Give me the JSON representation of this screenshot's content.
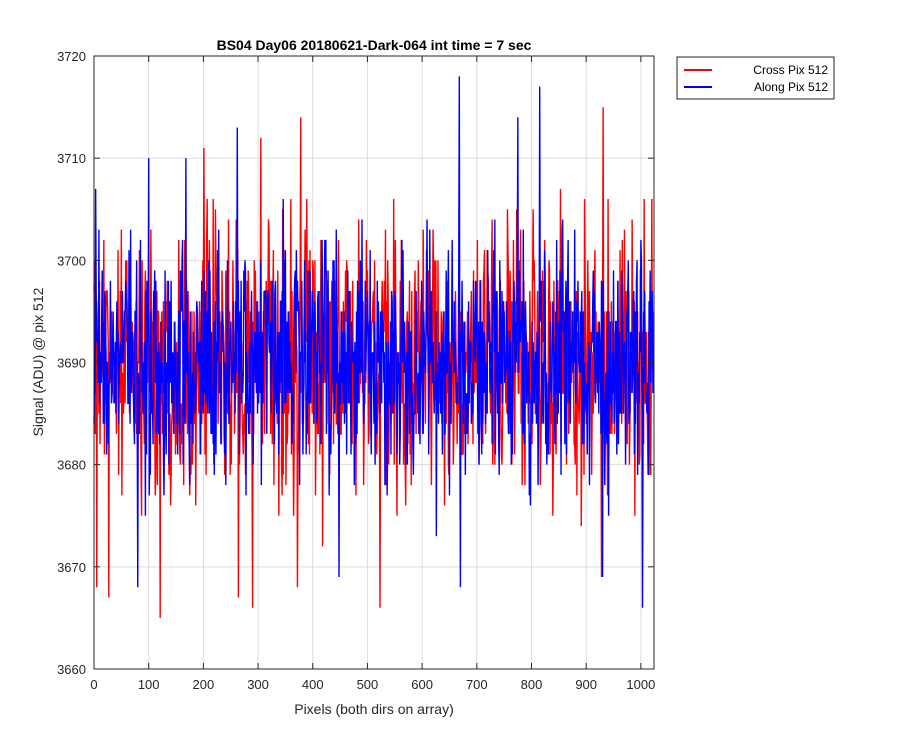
{
  "chart_data": {
    "type": "line",
    "title": "BS04 Day06 20180621-Dark-064 int time = 7 sec",
    "xlabel": "Pixels (both dirs on array)",
    "ylabel": "Signal (ADU) @ pix 512",
    "xlim": [
      0,
      1024
    ],
    "ylim": [
      3660,
      3720
    ],
    "xticks": [
      "0",
      "100",
      "200",
      "300",
      "400",
      "500",
      "600",
      "700",
      "800",
      "900",
      "1000"
    ],
    "yticks": [
      "3660",
      "3670",
      "3680",
      "3690",
      "3700",
      "3710",
      "3720"
    ],
    "grid": true,
    "legend_position": "outside top-right",
    "series": [
      {
        "name": "Cross Pix 512",
        "color": "#ff0000",
        "pattern": "noise",
        "mean": 3690,
        "spread": 6.5,
        "length": 1024,
        "extrema": [
          [
            1,
            3700
          ],
          [
            5,
            3668
          ],
          [
            27,
            3667
          ],
          [
            121,
            3665
          ],
          [
            201,
            3711
          ],
          [
            264,
            3667
          ],
          [
            290,
            3666
          ],
          [
            305,
            3712
          ],
          [
            372,
            3668
          ],
          [
            378,
            3714
          ],
          [
            523,
            3666
          ],
          [
            928,
            3669
          ],
          [
            931,
            3715
          ],
          [
            940,
            3706
          ],
          [
            1020,
            3706
          ]
        ]
      },
      {
        "name": "Along Pix 512",
        "color": "#0000ff",
        "pattern": "noise",
        "mean": 3690,
        "spread": 5.8,
        "length": 1024,
        "extrema": [
          [
            3,
            3707
          ],
          [
            80,
            3668
          ],
          [
            100,
            3710
          ],
          [
            168,
            3710
          ],
          [
            262,
            3713
          ],
          [
            448,
            3669
          ],
          [
            668,
            3718
          ],
          [
            670,
            3668
          ],
          [
            775,
            3714
          ],
          [
            815,
            3717
          ],
          [
            930,
            3669
          ],
          [
            1003,
            3666
          ]
        ]
      }
    ]
  }
}
